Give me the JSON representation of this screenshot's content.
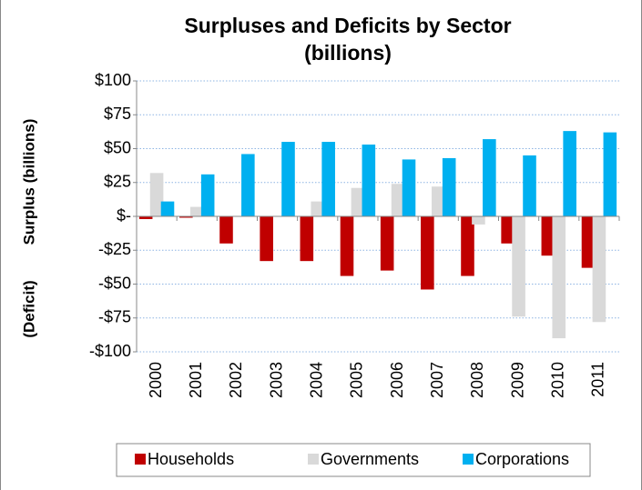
{
  "chart_data": {
    "type": "bar",
    "title": "Surpluses and Deficits by Sector",
    "subtitle": "(billions)",
    "ylabel": "Surplus (billions)",
    "ylabel_negative": "(Deficit)",
    "categories": [
      "2000",
      "2001",
      "2002",
      "2003",
      "2004",
      "2005",
      "2006",
      "2007",
      "2008",
      "2009",
      "2010",
      "2011"
    ],
    "series": [
      {
        "name": "Households",
        "color": "#c00000",
        "values": [
          -2,
          -1,
          -20,
          -33,
          -33,
          -44,
          -40,
          -54,
          -44,
          -20,
          -29,
          -38
        ]
      },
      {
        "name": "Governments",
        "color": "#d9d9d9",
        "values": [
          32,
          7,
          0,
          0,
          11,
          21,
          24,
          22,
          -6,
          -74,
          -90,
          -78
        ]
      },
      {
        "name": "Corporations",
        "color": "#00b0f0",
        "values": [
          11,
          31,
          46,
          55,
          55,
          53,
          42,
          43,
          57,
          45,
          63,
          62
        ]
      }
    ],
    "ylim": [
      -100,
      100
    ],
    "yticks": [
      {
        "value": 100,
        "label": "$100"
      },
      {
        "value": 75,
        "label": "$75"
      },
      {
        "value": 50,
        "label": "$50"
      },
      {
        "value": 25,
        "label": "$25"
      },
      {
        "value": 0,
        "label": "$-"
      },
      {
        "value": -25,
        "label": "-$25"
      },
      {
        "value": -50,
        "label": "-$50"
      },
      {
        "value": -75,
        "label": "-$75"
      },
      {
        "value": -100,
        "label": "-$100"
      }
    ],
    "grid": true,
    "legend": "bottom"
  }
}
